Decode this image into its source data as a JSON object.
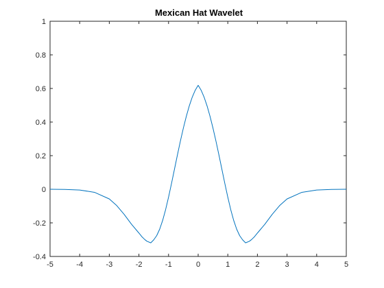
{
  "chart_data": {
    "type": "line",
    "title": "Mexican Hat Wavelet",
    "xlabel": "",
    "ylabel": "",
    "xlim": [
      -5,
      5
    ],
    "ylim": [
      -0.4,
      1
    ],
    "xticks": [
      -5,
      -4,
      -3,
      -2,
      -1,
      0,
      1,
      2,
      3,
      4,
      5
    ],
    "yticks": [
      -0.4,
      -0.2,
      0,
      0.2,
      0.4,
      0.6,
      0.8,
      1
    ],
    "xtick_labels": [
      "-5",
      "-4",
      "-3",
      "-2",
      "-1",
      "0",
      "1",
      "2",
      "3",
      "4",
      "5"
    ],
    "ytick_labels": [
      "-0.4",
      "-0.2",
      "0",
      "0.2",
      "0.4",
      "0.6",
      "0.8",
      "1"
    ],
    "grid": false,
    "series": [
      {
        "color": "#0072BD",
        "x": [
          -5,
          -4.5,
          -4,
          -3.5,
          -3,
          -2.75,
          -2.5,
          -2.25,
          -2,
          -1.9,
          -1.8,
          -1.73,
          -1.6,
          -1.5,
          -1.4,
          -1.3,
          -1.2,
          -1.1,
          -1,
          -0.9,
          -0.8,
          -0.7,
          -0.6,
          -0.5,
          -0.4,
          -0.3,
          -0.2,
          -0.1,
          0,
          0.1,
          0.2,
          0.3,
          0.4,
          0.5,
          0.6,
          0.7,
          0.8,
          0.9,
          1,
          1.1,
          1.2,
          1.3,
          1.4,
          1.5,
          1.6,
          1.73,
          1.8,
          1.9,
          2,
          2.25,
          2.5,
          2.75,
          3,
          3.5,
          4,
          4.5,
          5
        ],
        "y": [
          -0.0001,
          -0.0008,
          -0.0044,
          -0.0183,
          -0.0576,
          -0.0971,
          -0.1494,
          -0.2085,
          -0.2607,
          -0.2826,
          -0.2997,
          -0.3094,
          -0.3188,
          -0.301,
          -0.276,
          -0.2378,
          -0.186,
          -0.1217,
          -0.0471,
          0.0345,
          0.1195,
          0.2046,
          0.287,
          0.364,
          0.4343,
          0.4963,
          0.5484,
          0.5894,
          0.6187,
          0.5894,
          0.5484,
          0.4963,
          0.4343,
          0.364,
          0.287,
          0.2046,
          0.1195,
          0.0345,
          -0.0471,
          -0.1217,
          -0.186,
          -0.2378,
          -0.276,
          -0.301,
          -0.3188,
          -0.3094,
          -0.2997,
          -0.2826,
          -0.2607,
          -0.2085,
          -0.1494,
          -0.0971,
          -0.0576,
          -0.0183,
          -0.0044,
          -0.0008,
          -0.0001
        ]
      }
    ]
  }
}
